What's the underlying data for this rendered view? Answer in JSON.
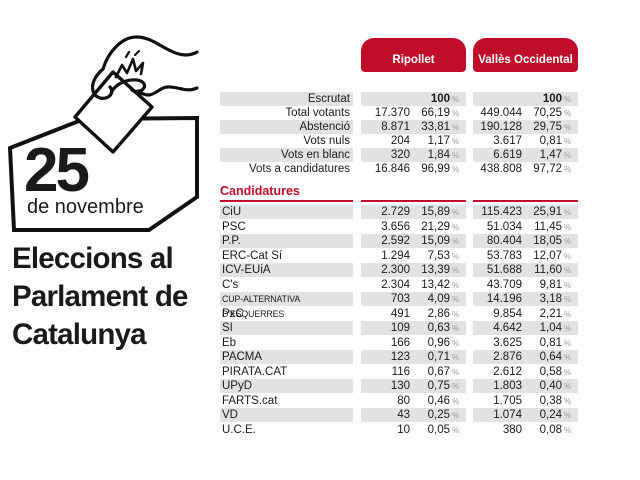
{
  "branding": {
    "day": "25",
    "month": "de novembre",
    "title_lines": [
      "Eleccions al",
      "Parlament de",
      "Catalunya"
    ]
  },
  "tabs": [
    {
      "label": "Ripollet"
    },
    {
      "label": "Vallès Occidental"
    }
  ],
  "ui": {
    "percent_sign": "%"
  },
  "colors": {
    "accent_red": "#C00D2A",
    "row_shade": "#E2E2E2",
    "text": "#1A1A1A"
  },
  "summary": {
    "rows": [
      {
        "label": "Escrutat",
        "bold": true,
        "cols": [
          {
            "votes": "",
            "pct": "100"
          },
          {
            "votes": "",
            "pct": "100"
          }
        ]
      },
      {
        "label": "Total votants",
        "cols": [
          {
            "votes": "17.370",
            "pct": "66,19"
          },
          {
            "votes": "449.044",
            "pct": "70,25"
          }
        ]
      },
      {
        "label": "Abstenció",
        "cols": [
          {
            "votes": "8.871",
            "pct": "33,81"
          },
          {
            "votes": "190.128",
            "pct": "29,75"
          }
        ]
      },
      {
        "label": "Vots nuls",
        "cols": [
          {
            "votes": "204",
            "pct": "1,17"
          },
          {
            "votes": "3.617",
            "pct": "0,81"
          }
        ]
      },
      {
        "label": "Vots en blanc",
        "cols": [
          {
            "votes": "320",
            "pct": "1,84"
          },
          {
            "votes": "6.619",
            "pct": "1,47"
          }
        ]
      },
      {
        "label": "Vots a candidatures",
        "cols": [
          {
            "votes": "16.846",
            "pct": "96,99"
          },
          {
            "votes": "438.808",
            "pct": "97,72"
          }
        ]
      }
    ]
  },
  "candidatures": {
    "heading": "Candidatures",
    "rows": [
      {
        "label": "CiU",
        "cols": [
          {
            "votes": "2.729",
            "pct": "15,89"
          },
          {
            "votes": "115.423",
            "pct": "25,91"
          }
        ]
      },
      {
        "label": "PSC",
        "cols": [
          {
            "votes": "3.656",
            "pct": "21,29"
          },
          {
            "votes": "51.034",
            "pct": "11,45"
          }
        ]
      },
      {
        "label": "P.P.",
        "cols": [
          {
            "votes": "2.592",
            "pct": "15,09"
          },
          {
            "votes": "80.404",
            "pct": "18,05"
          }
        ]
      },
      {
        "label": "ERC-Cat Sí",
        "cols": [
          {
            "votes": "1.294",
            "pct": "7,53"
          },
          {
            "votes": "53.783",
            "pct": "12,07"
          }
        ]
      },
      {
        "label": "ICV-EUiA",
        "cols": [
          {
            "votes": "2.300",
            "pct": "13,39"
          },
          {
            "votes": "51.688",
            "pct": "11,60"
          }
        ]
      },
      {
        "label": "C's",
        "cols": [
          {
            "votes": "2.304",
            "pct": "13,42"
          },
          {
            "votes": "43.709",
            "pct": "9,81"
          }
        ]
      },
      {
        "label": "CUP-ALTERNATIVA D'ESQUERRES",
        "small": true,
        "cols": [
          {
            "votes": "703",
            "pct": "4,09"
          },
          {
            "votes": "14.196",
            "pct": "3,18"
          }
        ]
      },
      {
        "label": "PxC",
        "cols": [
          {
            "votes": "491",
            "pct": "2,86"
          },
          {
            "votes": "9.854",
            "pct": "2,21"
          }
        ]
      },
      {
        "label": "SI",
        "cols": [
          {
            "votes": "109",
            "pct": "0,63"
          },
          {
            "votes": "4.642",
            "pct": "1,04"
          }
        ]
      },
      {
        "label": "Eb",
        "cols": [
          {
            "votes": "166",
            "pct": "0,96"
          },
          {
            "votes": "3.625",
            "pct": "0,81"
          }
        ]
      },
      {
        "label": "PACMA",
        "cols": [
          {
            "votes": "123",
            "pct": "0,71"
          },
          {
            "votes": "2.876",
            "pct": "0,64"
          }
        ]
      },
      {
        "label": "PIRATA.CAT",
        "cols": [
          {
            "votes": "116",
            "pct": "0,67"
          },
          {
            "votes": "2.612",
            "pct": "0,58"
          }
        ]
      },
      {
        "label": "UPyD",
        "cols": [
          {
            "votes": "130",
            "pct": "0,75"
          },
          {
            "votes": "1.803",
            "pct": "0,40"
          }
        ]
      },
      {
        "label": "FARTS.cat",
        "cols": [
          {
            "votes": "80",
            "pct": "0,46"
          },
          {
            "votes": "1.705",
            "pct": "0,38"
          }
        ]
      },
      {
        "label": "VD",
        "cols": [
          {
            "votes": "43",
            "pct": "0,25"
          },
          {
            "votes": "1.074",
            "pct": "0,24"
          }
        ]
      },
      {
        "label": "U.C.E.",
        "cols": [
          {
            "votes": "10",
            "pct": "0,05"
          },
          {
            "votes": "380",
            "pct": "0,08"
          }
        ]
      }
    ]
  }
}
